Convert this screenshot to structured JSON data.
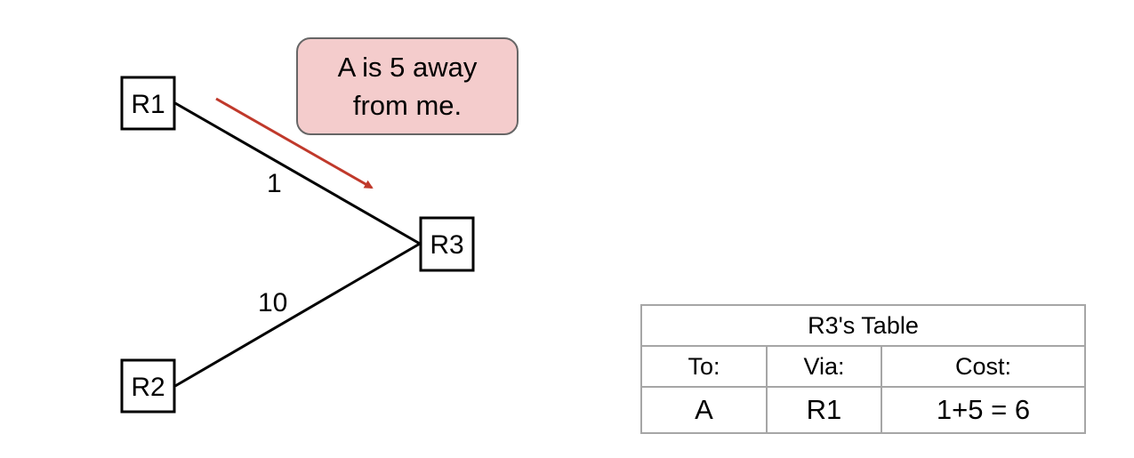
{
  "routers": [
    {
      "id": "R1",
      "label": "R1"
    },
    {
      "id": "R2",
      "label": "R2"
    },
    {
      "id": "R3",
      "label": "R3"
    }
  ],
  "links": [
    {
      "from": "R1",
      "to": "R3",
      "cost_label": "1"
    },
    {
      "from": "R2",
      "to": "R3",
      "cost_label": "10"
    }
  ],
  "advertisement": {
    "from": "R1",
    "to": "R3",
    "message": "A is 5 away from me.",
    "arrow_color": "#c0392b",
    "bubble_color": "#f4cccc"
  },
  "table": {
    "title": "R3's Table",
    "headers": [
      "To:",
      "Via:",
      "Cost:"
    ],
    "rows": [
      [
        "A",
        "R1",
        "1+5 = 6"
      ]
    ],
    "border_color": "#a6a6a6"
  }
}
